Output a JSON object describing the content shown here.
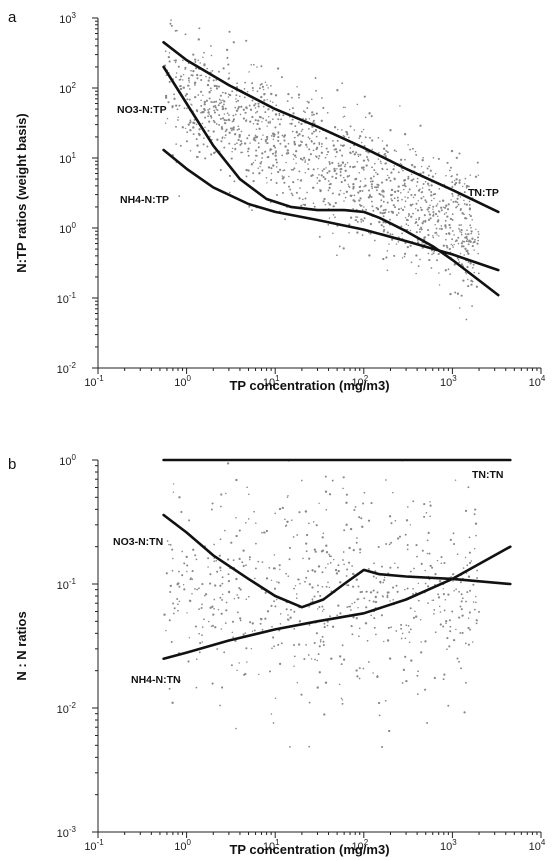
{
  "chart_data": [
    {
      "type": "scatter",
      "panel_label": "a",
      "xlabel": "TP concentration (mg/m3)",
      "ylabel": "N:TP ratios (weight basis)",
      "xscale": "log",
      "yscale": "log",
      "xlim": [
        0.1,
        10000
      ],
      "ylim": [
        0.01,
        1000
      ],
      "x_ticks": [
        {
          "v": 0.1,
          "b": "10",
          "e": "-1"
        },
        {
          "v": 1,
          "b": "10",
          "e": "0"
        },
        {
          "v": 10,
          "b": "10",
          "e": "1"
        },
        {
          "v": 100,
          "b": "10",
          "e": "2"
        },
        {
          "v": 1000,
          "b": "10",
          "e": "3"
        },
        {
          "v": 10000,
          "b": "10",
          "e": "4"
        }
      ],
      "y_ticks": [
        {
          "v": 0.01,
          "b": "10",
          "e": "-2"
        },
        {
          "v": 0.1,
          "b": "10",
          "e": "-1"
        },
        {
          "v": 1,
          "b": "10",
          "e": "0"
        },
        {
          "v": 10,
          "b": "10",
          "e": "1"
        },
        {
          "v": 100,
          "b": "10",
          "e": "2"
        },
        {
          "v": 1000,
          "b": "10",
          "e": "3"
        }
      ],
      "grid": false,
      "series": [
        {
          "name": "TN:TP",
          "x": [
            0.55,
            1,
            3,
            10,
            30,
            100,
            300,
            1000,
            3300
          ],
          "y": [
            450,
            250,
            110,
            50,
            28,
            14,
            7,
            3.5,
            1.7
          ]
        },
        {
          "name": "NO3-N:TP",
          "x": [
            0.55,
            1,
            2,
            4,
            8,
            15,
            30,
            60,
            100,
            150,
            300,
            600,
            1000,
            3300
          ],
          "y": [
            200,
            60,
            15,
            5,
            2.6,
            2.0,
            1.8,
            1.8,
            1.7,
            1.4,
            0.9,
            0.55,
            0.35,
            0.11
          ]
        },
        {
          "name": "NH4-N:TP",
          "x": [
            0.55,
            1,
            2,
            5,
            10,
            30,
            100,
            300,
            1000,
            3300
          ],
          "y": [
            13,
            7,
            3.8,
            2.2,
            1.7,
            1.3,
            0.95,
            0.65,
            0.42,
            0.25
          ]
        }
      ]
    },
    {
      "type": "scatter",
      "panel_label": "b",
      "xlabel": "TP concentration (mg/m3)",
      "ylabel": "N : N  ratios",
      "xscale": "log",
      "yscale": "log",
      "xlim": [
        0.1,
        10000
      ],
      "ylim": [
        0.001,
        1
      ],
      "x_ticks": [
        {
          "v": 0.1,
          "b": "10",
          "e": "-1"
        },
        {
          "v": 1,
          "b": "10",
          "e": "0"
        },
        {
          "v": 10,
          "b": "10",
          "e": "1"
        },
        {
          "v": 100,
          "b": "10",
          "e": "2"
        },
        {
          "v": 1000,
          "b": "10",
          "e": "3"
        },
        {
          "v": 10000,
          "b": "10",
          "e": "4"
        }
      ],
      "y_ticks": [
        {
          "v": 0.001,
          "b": "10",
          "e": "-3"
        },
        {
          "v": 0.01,
          "b": "10",
          "e": "-2"
        },
        {
          "v": 0.1,
          "b": "10",
          "e": "-1"
        },
        {
          "v": 1,
          "b": "10",
          "e": "0"
        }
      ],
      "grid": false,
      "series": [
        {
          "name": "TN:TN",
          "x": [
            0.55,
            4500
          ],
          "y": [
            1.0,
            1.0
          ]
        },
        {
          "name": "NO3-N:TN",
          "x": [
            0.55,
            1,
            2,
            5,
            10,
            20,
            35,
            60,
            100,
            150,
            300,
            1000,
            4500
          ],
          "y": [
            0.36,
            0.26,
            0.17,
            0.11,
            0.08,
            0.065,
            0.075,
            0.1,
            0.13,
            0.12,
            0.115,
            0.11,
            0.1
          ]
        },
        {
          "name": "NH4-N:TN",
          "x": [
            0.55,
            1,
            3,
            10,
            30,
            100,
            300,
            1000,
            4500
          ],
          "y": [
            0.025,
            0.028,
            0.035,
            0.043,
            0.05,
            0.058,
            0.075,
            0.11,
            0.2
          ]
        }
      ]
    }
  ]
}
